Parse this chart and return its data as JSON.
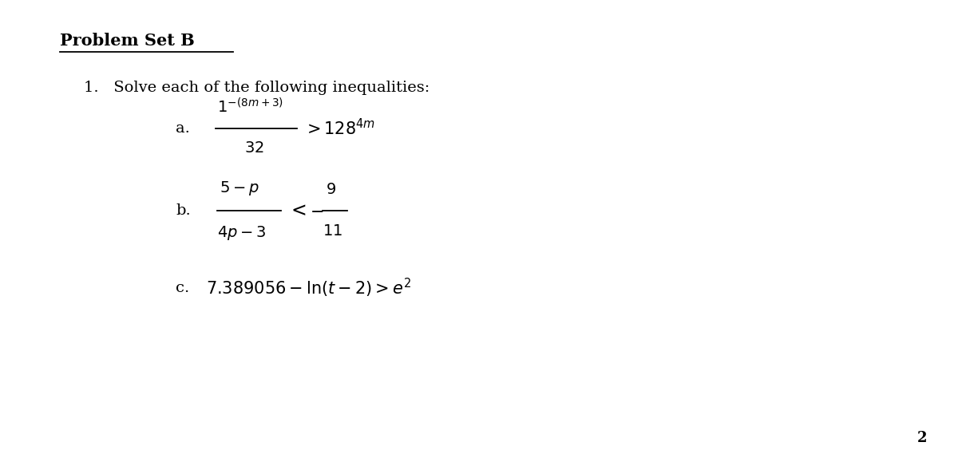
{
  "title": "Problem Set B",
  "background_color": "#ffffff",
  "text_color": "#000000",
  "page_number": "2",
  "problem_1_intro": "1.   Solve each of the following inequalities:",
  "part_a_label": "a.",
  "part_b_label": "b.",
  "part_c_label": "c.",
  "title_fontsize": 15,
  "body_fontsize": 14,
  "math_fontsize": 14
}
